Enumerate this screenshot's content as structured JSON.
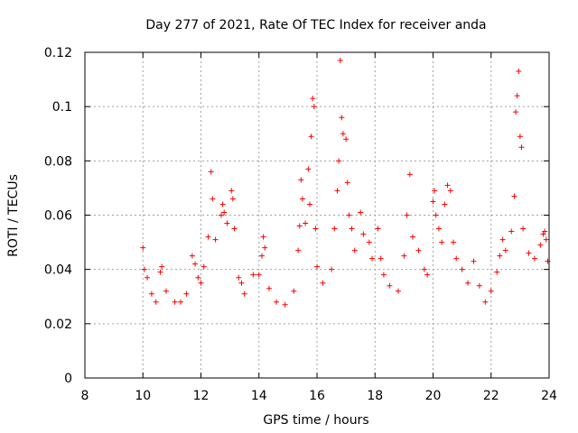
{
  "chart_data": {
    "type": "scatter",
    "title": "Day 277 of 2021, Rate Of TEC Index for receiver anda",
    "xlabel": "GPS time / hours",
    "ylabel": "ROTI / TECUs",
    "xlim": [
      8,
      24
    ],
    "ylim": [
      0,
      0.12
    ],
    "xticks": [
      8,
      10,
      12,
      14,
      16,
      18,
      20,
      22,
      24
    ],
    "yticks": [
      0,
      0.02,
      0.04,
      0.06,
      0.08,
      0.1,
      0.12
    ],
    "xtick_labels": [
      "8",
      "10",
      "12",
      "14",
      "16",
      "18",
      "20",
      "22",
      "24"
    ],
    "ytick_labels": [
      "0",
      "0.02",
      "0.04",
      "0.06",
      "0.08",
      "0.1",
      "0.12"
    ],
    "grid": true,
    "marker": "+",
    "color": "#ff0000",
    "series": [
      {
        "points": [
          [
            10.0,
            0.048
          ],
          [
            10.05,
            0.04
          ],
          [
            10.15,
            0.037
          ],
          [
            10.3,
            0.031
          ],
          [
            10.45,
            0.028
          ],
          [
            10.6,
            0.039
          ],
          [
            10.65,
            0.041
          ],
          [
            10.8,
            0.032
          ],
          [
            11.1,
            0.028
          ],
          [
            11.3,
            0.028
          ],
          [
            11.5,
            0.031
          ],
          [
            11.7,
            0.045
          ],
          [
            11.8,
            0.042
          ],
          [
            11.9,
            0.037
          ],
          [
            12.0,
            0.035
          ],
          [
            12.1,
            0.041
          ],
          [
            12.25,
            0.052
          ],
          [
            12.35,
            0.076
          ],
          [
            12.4,
            0.066
          ],
          [
            12.5,
            0.051
          ],
          [
            12.7,
            0.06
          ],
          [
            12.75,
            0.064
          ],
          [
            12.8,
            0.061
          ],
          [
            12.9,
            0.057
          ],
          [
            13.05,
            0.069
          ],
          [
            13.1,
            0.066
          ],
          [
            13.15,
            0.055
          ],
          [
            13.3,
            0.037
          ],
          [
            13.4,
            0.035
          ],
          [
            13.5,
            0.031
          ],
          [
            13.8,
            0.038
          ],
          [
            14.0,
            0.038
          ],
          [
            14.1,
            0.045
          ],
          [
            14.15,
            0.052
          ],
          [
            14.2,
            0.048
          ],
          [
            14.35,
            0.033
          ],
          [
            14.6,
            0.028
          ],
          [
            14.9,
            0.027
          ],
          [
            15.2,
            0.032
          ],
          [
            15.35,
            0.047
          ],
          [
            15.4,
            0.056
          ],
          [
            15.45,
            0.073
          ],
          [
            15.5,
            0.066
          ],
          [
            15.6,
            0.057
          ],
          [
            15.7,
            0.077
          ],
          [
            15.75,
            0.064
          ],
          [
            15.8,
            0.089
          ],
          [
            15.85,
            0.103
          ],
          [
            15.9,
            0.1
          ],
          [
            15.95,
            0.055
          ],
          [
            16.0,
            0.041
          ],
          [
            16.2,
            0.035
          ],
          [
            16.5,
            0.04
          ],
          [
            16.6,
            0.055
          ],
          [
            16.7,
            0.069
          ],
          [
            16.75,
            0.08
          ],
          [
            16.8,
            0.117
          ],
          [
            16.85,
            0.096
          ],
          [
            16.9,
            0.09
          ],
          [
            17.0,
            0.088
          ],
          [
            17.05,
            0.072
          ],
          [
            17.1,
            0.06
          ],
          [
            17.2,
            0.055
          ],
          [
            17.3,
            0.047
          ],
          [
            17.5,
            0.061
          ],
          [
            17.6,
            0.053
          ],
          [
            17.8,
            0.05
          ],
          [
            17.9,
            0.044
          ],
          [
            18.1,
            0.055
          ],
          [
            18.2,
            0.044
          ],
          [
            18.3,
            0.038
          ],
          [
            18.5,
            0.034
          ],
          [
            18.8,
            0.032
          ],
          [
            19.0,
            0.045
          ],
          [
            19.1,
            0.06
          ],
          [
            19.2,
            0.075
          ],
          [
            19.3,
            0.052
          ],
          [
            19.5,
            0.047
          ],
          [
            19.7,
            0.04
          ],
          [
            19.8,
            0.038
          ],
          [
            20.0,
            0.065
          ],
          [
            20.05,
            0.069
          ],
          [
            20.1,
            0.06
          ],
          [
            20.2,
            0.055
          ],
          [
            20.3,
            0.05
          ],
          [
            20.4,
            0.064
          ],
          [
            20.5,
            0.071
          ],
          [
            20.6,
            0.069
          ],
          [
            20.7,
            0.05
          ],
          [
            20.8,
            0.044
          ],
          [
            21.0,
            0.04
          ],
          [
            21.2,
            0.035
          ],
          [
            21.4,
            0.043
          ],
          [
            21.6,
            0.034
          ],
          [
            21.8,
            0.028
          ],
          [
            22.0,
            0.032
          ],
          [
            22.2,
            0.039
          ],
          [
            22.3,
            0.045
          ],
          [
            22.4,
            0.051
          ],
          [
            22.5,
            0.047
          ],
          [
            22.7,
            0.054
          ],
          [
            22.8,
            0.067
          ],
          [
            22.85,
            0.098
          ],
          [
            22.9,
            0.104
          ],
          [
            22.95,
            0.113
          ],
          [
            23.0,
            0.089
          ],
          [
            23.05,
            0.085
          ],
          [
            23.1,
            0.055
          ],
          [
            23.3,
            0.046
          ],
          [
            23.5,
            0.044
          ],
          [
            23.7,
            0.049
          ],
          [
            23.8,
            0.053
          ],
          [
            23.85,
            0.054
          ],
          [
            23.9,
            0.051
          ],
          [
            23.95,
            0.043
          ]
        ]
      }
    ]
  }
}
